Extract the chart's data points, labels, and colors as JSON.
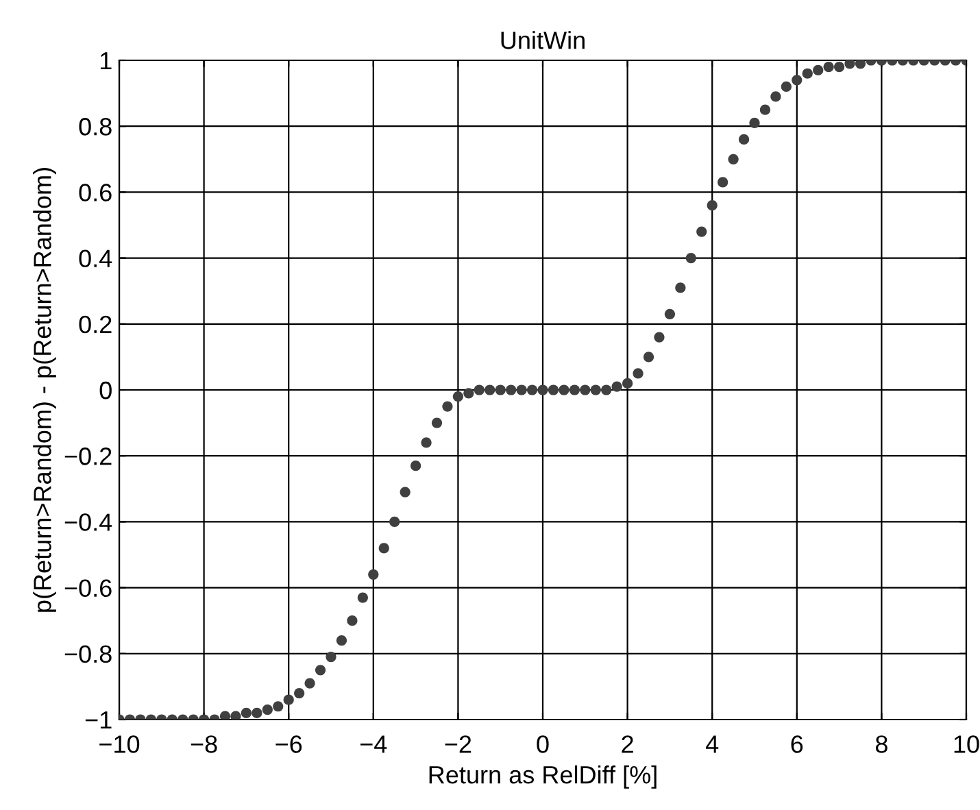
{
  "chart_data": {
    "type": "scatter",
    "title": "UnitWin",
    "xlabel": "Return as RelDiff [%]",
    "ylabel": "p(Return>Random) - p(Return>Random)",
    "x": [
      -10,
      -9.75,
      -9.5,
      -9.25,
      -9,
      -8.75,
      -8.5,
      -8.25,
      -8,
      -7.75,
      -7.5,
      -7.25,
      -7,
      -6.75,
      -6.5,
      -6.25,
      -6,
      -5.75,
      -5.5,
      -5.25,
      -5,
      -4.75,
      -4.5,
      -4.25,
      -4,
      -3.75,
      -3.5,
      -3.25,
      -3,
      -2.75,
      -2.5,
      -2.25,
      -2,
      -1.75,
      -1.5,
      -1.25,
      -1,
      -0.75,
      -0.5,
      -0.25,
      0,
      0.25,
      0.5,
      0.75,
      1,
      1.25,
      1.5,
      1.75,
      2,
      2.25,
      2.5,
      2.75,
      3,
      3.25,
      3.5,
      3.75,
      4,
      4.25,
      4.5,
      4.75,
      5,
      5.25,
      5.5,
      5.75,
      6,
      6.25,
      6.5,
      6.75,
      7,
      7.25,
      7.5,
      7.75,
      8,
      8.25,
      8.5,
      8.75,
      9,
      9.25,
      9.5,
      9.75,
      10
    ],
    "series": [
      {
        "color": "#404040",
        "values": [
          -1,
          -1,
          -1,
          -1,
          -1,
          -1,
          -1,
          -1,
          -1,
          -1,
          -0.99,
          -0.99,
          -0.98,
          -0.98,
          -0.97,
          -0.96,
          -0.94,
          -0.92,
          -0.89,
          -0.85,
          -0.81,
          -0.76,
          -0.7,
          -0.63,
          -0.56,
          -0.48,
          -0.4,
          -0.31,
          -0.23,
          -0.16,
          -0.1,
          -0.05,
          -0.02,
          -0.01,
          0,
          0,
          0,
          0,
          0,
          0,
          0,
          0,
          0,
          0,
          0,
          0,
          0,
          0.01,
          0.02,
          0.05,
          0.1,
          0.16,
          0.23,
          0.31,
          0.4,
          0.48,
          0.56,
          0.63,
          0.7,
          0.76,
          0.81,
          0.85,
          0.89,
          0.92,
          0.94,
          0.96,
          0.97,
          0.98,
          0.98,
          0.99,
          0.99,
          1,
          1,
          1,
          1,
          1,
          1,
          1,
          1,
          1,
          1
        ]
      }
    ],
    "marker": "circle",
    "grid": true,
    "xlim": [
      -10,
      10
    ],
    "ylim": [
      -1,
      1
    ],
    "xticks": [
      {
        "value": -10,
        "label": "−10"
      },
      {
        "value": -8,
        "label": "−8"
      },
      {
        "value": -6,
        "label": "−6"
      },
      {
        "value": -4,
        "label": "−4"
      },
      {
        "value": -2,
        "label": "−2"
      },
      0,
      2,
      4,
      6,
      8,
      10
    ],
    "yticks": [
      {
        "value": -1,
        "label": "−1"
      },
      {
        "value": -0.8,
        "label": "−0.8"
      },
      {
        "value": -0.6,
        "label": "−0.6"
      },
      {
        "value": -0.4,
        "label": "−0.4"
      },
      {
        "value": -0.2,
        "label": "−0.2"
      },
      0,
      0.2,
      0.4,
      0.6,
      0.8,
      1
    ]
  }
}
